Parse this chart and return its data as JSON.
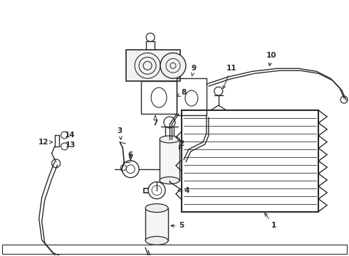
{
  "bg_color": "#ffffff",
  "lc": "#2a2a2a",
  "fig_width": 4.9,
  "fig_height": 3.6,
  "dpi": 100,
  "xlim": [
    0,
    490
  ],
  "ylim": [
    0,
    360
  ]
}
